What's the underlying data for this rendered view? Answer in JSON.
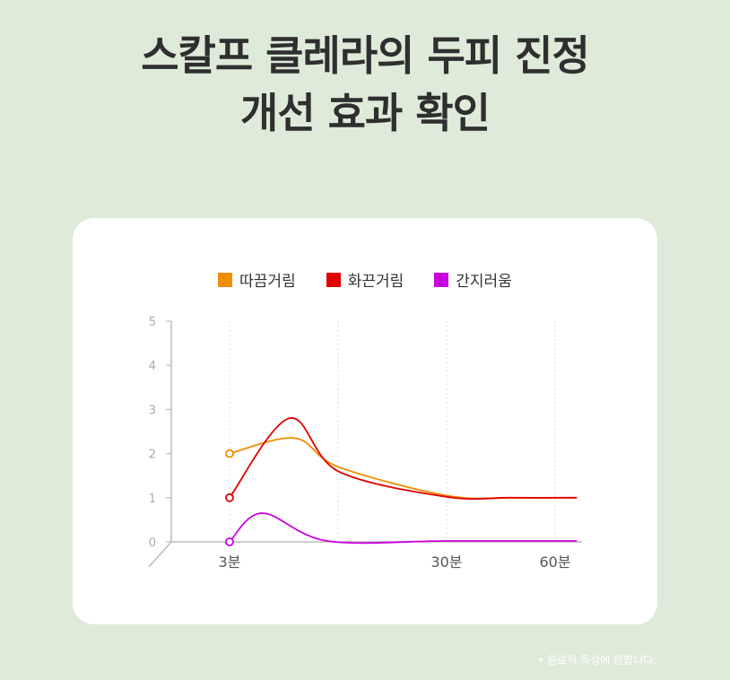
{
  "header": {
    "title_line1": "스칼프 클레라의 두피 진정",
    "title_line2": "개선 효과 확인"
  },
  "chart_data": {
    "type": "line",
    "x_categories": [
      "3분",
      "",
      "30분",
      "60분"
    ],
    "ylim": [
      0,
      5
    ],
    "yticks": [
      "0",
      "1",
      "2",
      "3",
      "4",
      "5"
    ],
    "grid": "vertical dotted",
    "legend_position": "top-center",
    "series": [
      {
        "name": "따끔거림",
        "color": "#f08c00",
        "points": [
          [
            0,
            2.0
          ],
          [
            0.6,
            2.35
          ],
          [
            1.0,
            1.7
          ],
          [
            2.0,
            1.05
          ],
          [
            2.6,
            1.0
          ],
          [
            3.2,
            1.0
          ]
        ]
      },
      {
        "name": "화끈거림",
        "color": "#e00000",
        "points": [
          [
            0,
            1.0
          ],
          [
            0.55,
            2.8
          ],
          [
            1.0,
            1.6
          ],
          [
            2.0,
            1.02
          ],
          [
            2.6,
            1.0
          ],
          [
            3.2,
            1.0
          ]
        ]
      },
      {
        "name": "간지러움",
        "color": "#c800e0",
        "points": [
          [
            0,
            0.0
          ],
          [
            0.3,
            0.65
          ],
          [
            0.9,
            0.02
          ],
          [
            2.0,
            0.02
          ],
          [
            3.2,
            0.02
          ]
        ]
      }
    ]
  },
  "footnote": "• 원료적 특성에 한합니다."
}
